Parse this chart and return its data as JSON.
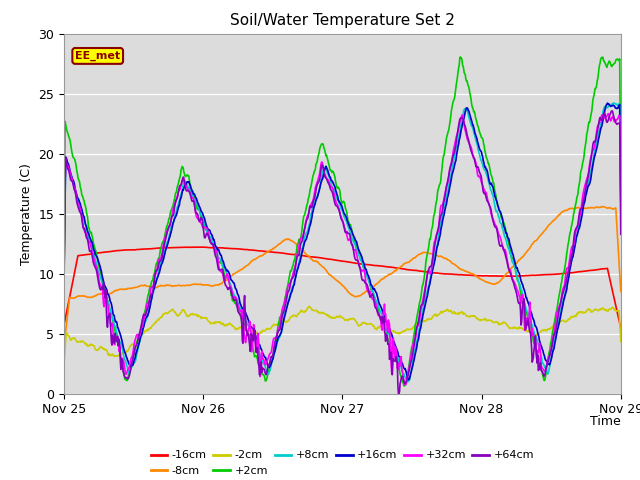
{
  "title": "Soil/Water Temperature Set 2",
  "xlabel": "Time",
  "ylabel": "Temperature (C)",
  "ylim": [
    0,
    30
  ],
  "background_color": "#ffffff",
  "plot_bg_color": "#dcdcdc",
  "annotation_text": "EE_met",
  "annotation_bg": "#ffff00",
  "annotation_border": "#8b0000",
  "series_order": [
    "-16cm",
    "-8cm",
    "-2cm",
    "+2cm",
    "+8cm",
    "+16cm",
    "+32cm",
    "+64cm"
  ],
  "colors": {
    "-16cm": "#ff0000",
    "-8cm": "#ff8800",
    "-2cm": "#cccc00",
    "+2cm": "#00cc00",
    "+8cm": "#00cccc",
    "+16cm": "#0000cc",
    "+32cm": "#ff00ff",
    "+64cm": "#8800bb"
  },
  "x_ticks": [
    "Nov 25",
    "Nov 26",
    "Nov 27",
    "Nov 28",
    "Nov 29"
  ],
  "n_points": 1000
}
